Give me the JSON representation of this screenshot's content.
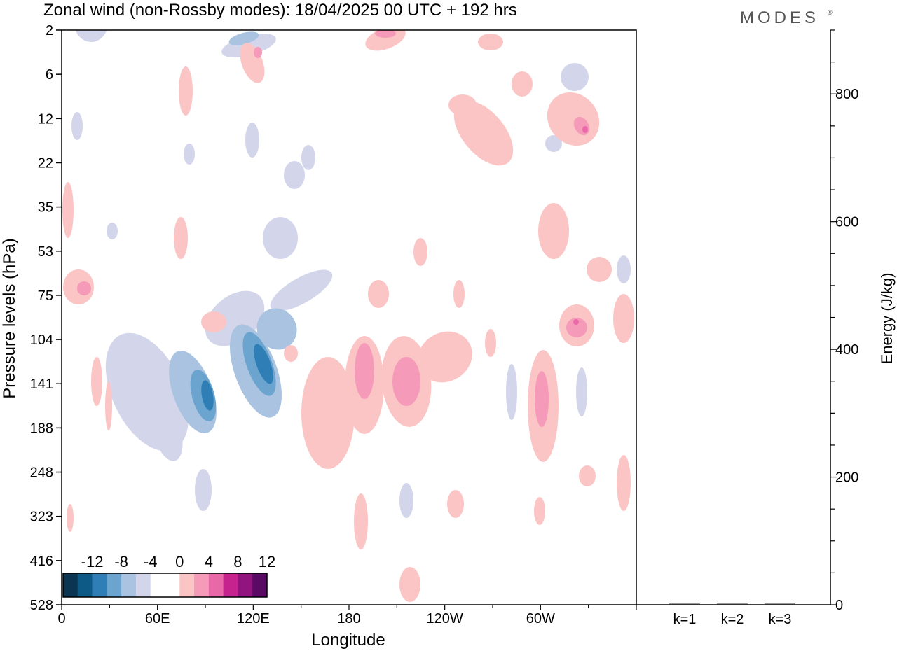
{
  "title": "Zonal wind (non-Rossby modes):  18/04/2025  00 UTC  + 192 hrs",
  "logo": "MODES",
  "chart_data": [
    {
      "type": "heatmap",
      "variable": "Zonal wind (non-Rossby modes)",
      "xlabel": "Longitude",
      "ylabel": "Pressure levels (hPa)",
      "x_ticks": [
        "0",
        "60E",
        "120E",
        "180",
        "120W",
        "60W"
      ],
      "x_tick_degrees": [
        0,
        60,
        120,
        180,
        240,
        300
      ],
      "xlim": [
        0,
        360
      ],
      "y_ticks": [
        "2",
        "6",
        "12",
        "22",
        "35",
        "53",
        "75",
        "104",
        "141",
        "188",
        "248",
        "323",
        "416",
        "528"
      ],
      "colorbar": {
        "labels": [
          "-12",
          "-8",
          "-4",
          "0",
          "4",
          "8",
          "12"
        ],
        "colors": [
          "#0b3550",
          "#0d5a87",
          "#2f7fb6",
          "#6aa4cf",
          "#a9c3e0",
          "#d3d5ea",
          "#ffffff",
          "#ffffff",
          "#fbc5c5",
          "#f59ab8",
          "#e868a8",
          "#c7238e",
          "#92157f",
          "#5a0a64"
        ]
      },
      "features": [
        {
          "sign": "negative",
          "lon": 128,
          "level": "141",
          "peak": -12
        },
        {
          "sign": "negative",
          "lon": 93,
          "level": "141",
          "peak": -12
        },
        {
          "sign": "negative",
          "lon": 113,
          "level": "2",
          "peak": -8
        },
        {
          "sign": "negative",
          "lon": 354,
          "level": "53",
          "peak": -8
        },
        {
          "sign": "positive",
          "lon": 190,
          "level": "141",
          "peak": 8
        },
        {
          "sign": "positive",
          "lon": 211,
          "level": "141",
          "peak": 8
        },
        {
          "sign": "positive",
          "lon": 300,
          "level": "141",
          "peak": 8
        },
        {
          "sign": "positive",
          "lon": 325,
          "level": "104",
          "peak": 8
        },
        {
          "sign": "positive",
          "lon": 330,
          "level": "12",
          "peak": 8
        },
        {
          "sign": "positive",
          "lon": 12,
          "level": "75",
          "peak": 8
        },
        {
          "sign": "positive",
          "lon": 204,
          "level": "2",
          "peak": 8
        }
      ]
    },
    {
      "type": "bar",
      "ylabel": "Energy (J/kg)",
      "categories": [
        "k=1",
        "k=2",
        "k=3"
      ],
      "values": [
        1.5,
        1.0,
        0.5
      ],
      "ylim": [
        0,
        900
      ],
      "y_ticks": [
        "0",
        "200",
        "400",
        "600",
        "800"
      ],
      "y_tick_values": [
        0,
        200,
        400,
        600,
        800
      ]
    }
  ]
}
